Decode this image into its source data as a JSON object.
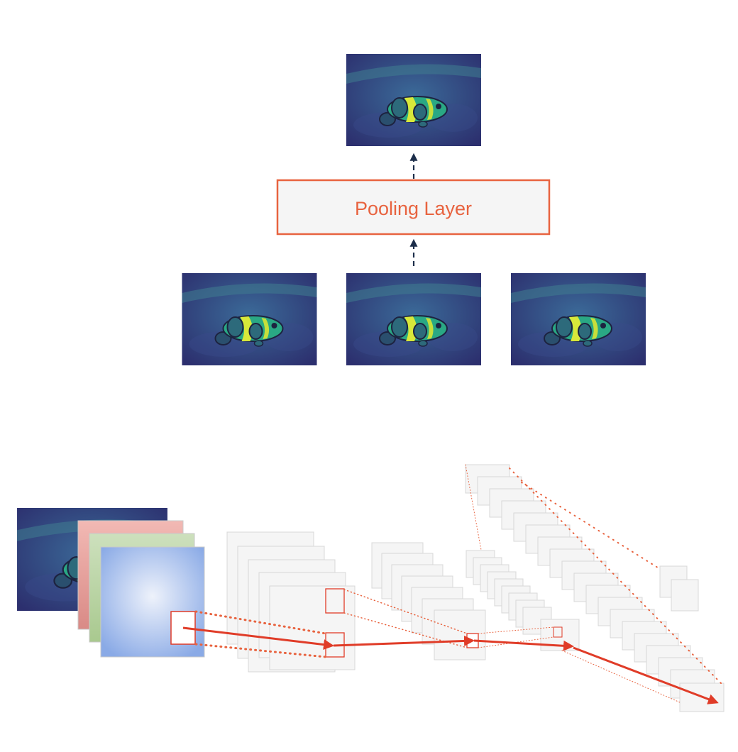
{
  "pooling_layer": {
    "label": "Pooling Layer"
  },
  "colors": {
    "accent": "#e8633f",
    "arrow_red": "#e03c28",
    "dashed_arrow": "#1c2e4a",
    "box_fill": "#f5f5f5",
    "box_stroke": "#d8d8d8",
    "fish_water": "#34407e",
    "fish_body": "#2aa884",
    "fish_stripe": "#d8e83a",
    "channel_red": "#d98a86",
    "channel_green": "#a9c98f",
    "channel_blue": "#8aaae6"
  },
  "icons": {
    "fish_image": "clownfish-heatmap-icon",
    "up_arrow": "dashed-up-arrow-icon"
  }
}
